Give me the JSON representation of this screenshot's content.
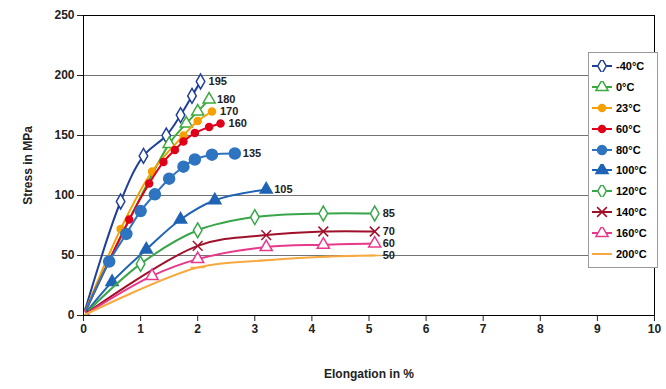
{
  "chart_data": {
    "type": "line",
    "x_label": "Elongation in %",
    "y_label": "Stress in MPa",
    "xlim": [
      0,
      10
    ],
    "xticks": [
      0,
      1,
      2,
      3,
      4,
      5,
      6,
      7,
      8,
      9,
      10
    ],
    "ylim": [
      0,
      250
    ],
    "yticks": [
      0,
      50,
      100,
      150,
      200,
      250
    ],
    "grid": true,
    "legend": "top-right",
    "data_labels": true,
    "series": [
      {
        "name": "-40°C",
        "color": "#1f3f99",
        "marker": "open_diamond",
        "x": [
          0,
          0.65,
          1.05,
          1.45,
          1.7,
          1.9,
          2.05
        ],
        "values": [
          0,
          95,
          133,
          150,
          167,
          183,
          195
        ]
      },
      {
        "name": "0°C",
        "color": "#3aab3a",
        "marker": "open_triangle",
        "x": [
          0,
          1.5,
          1.8,
          2.0,
          2.2
        ],
        "values": [
          0,
          143,
          160,
          170,
          180
        ]
      },
      {
        "name": "23°C",
        "color": "#f5a000",
        "marker": "circle",
        "x": [
          0,
          0.65,
          1.2,
          1.75,
          2.0,
          2.25
        ],
        "values": [
          0,
          72,
          120,
          150,
          162,
          170
        ]
      },
      {
        "name": "60°C",
        "color": "#e0001a",
        "marker": "circle",
        "x": [
          0,
          0.8,
          1.15,
          1.4,
          1.6,
          1.75,
          1.95,
          2.2,
          2.4
        ],
        "values": [
          0,
          80,
          110,
          128,
          138,
          145,
          152,
          157,
          160
        ]
      },
      {
        "name": "80°C",
        "color": "#2e74c0",
        "marker": "big_circle",
        "x": [
          0,
          0.45,
          0.75,
          1.0,
          1.25,
          1.5,
          1.75,
          1.95,
          2.25,
          2.65
        ],
        "values": [
          0,
          45,
          68,
          87,
          101,
          114,
          124,
          130,
          134,
          135
        ]
      },
      {
        "name": "100°C",
        "color": "#1f63b5",
        "marker": "triangle",
        "x": [
          0,
          0.5,
          1.1,
          1.7,
          2.3,
          3.2
        ],
        "values": [
          0,
          28,
          55,
          80,
          96,
          105
        ]
      },
      {
        "name": "120°C",
        "color": "#3aa64a",
        "marker": "open_diamond",
        "x": [
          0,
          1.0,
          2.0,
          3.0,
          4.2,
          5.1
        ],
        "values": [
          0,
          43,
          71,
          82,
          85,
          85
        ]
      },
      {
        "name": "140°C",
        "color": "#a0102a",
        "marker": "x",
        "x": [
          0,
          2.0,
          3.2,
          4.2,
          5.1
        ],
        "values": [
          0,
          58,
          67,
          70,
          70
        ]
      },
      {
        "name": "160°C",
        "color": "#e8388a",
        "marker": "open_triangle",
        "x": [
          0,
          1.2,
          2.0,
          3.2,
          4.2,
          5.1
        ],
        "values": [
          0,
          33,
          47,
          57,
          59,
          60
        ]
      },
      {
        "name": "200°C",
        "color": "#f7a940",
        "marker": "dash",
        "x": [
          0,
          2.0,
          3.2,
          4.2,
          5.1
        ],
        "values": [
          0,
          40,
          46,
          49,
          50
        ]
      }
    ]
  }
}
